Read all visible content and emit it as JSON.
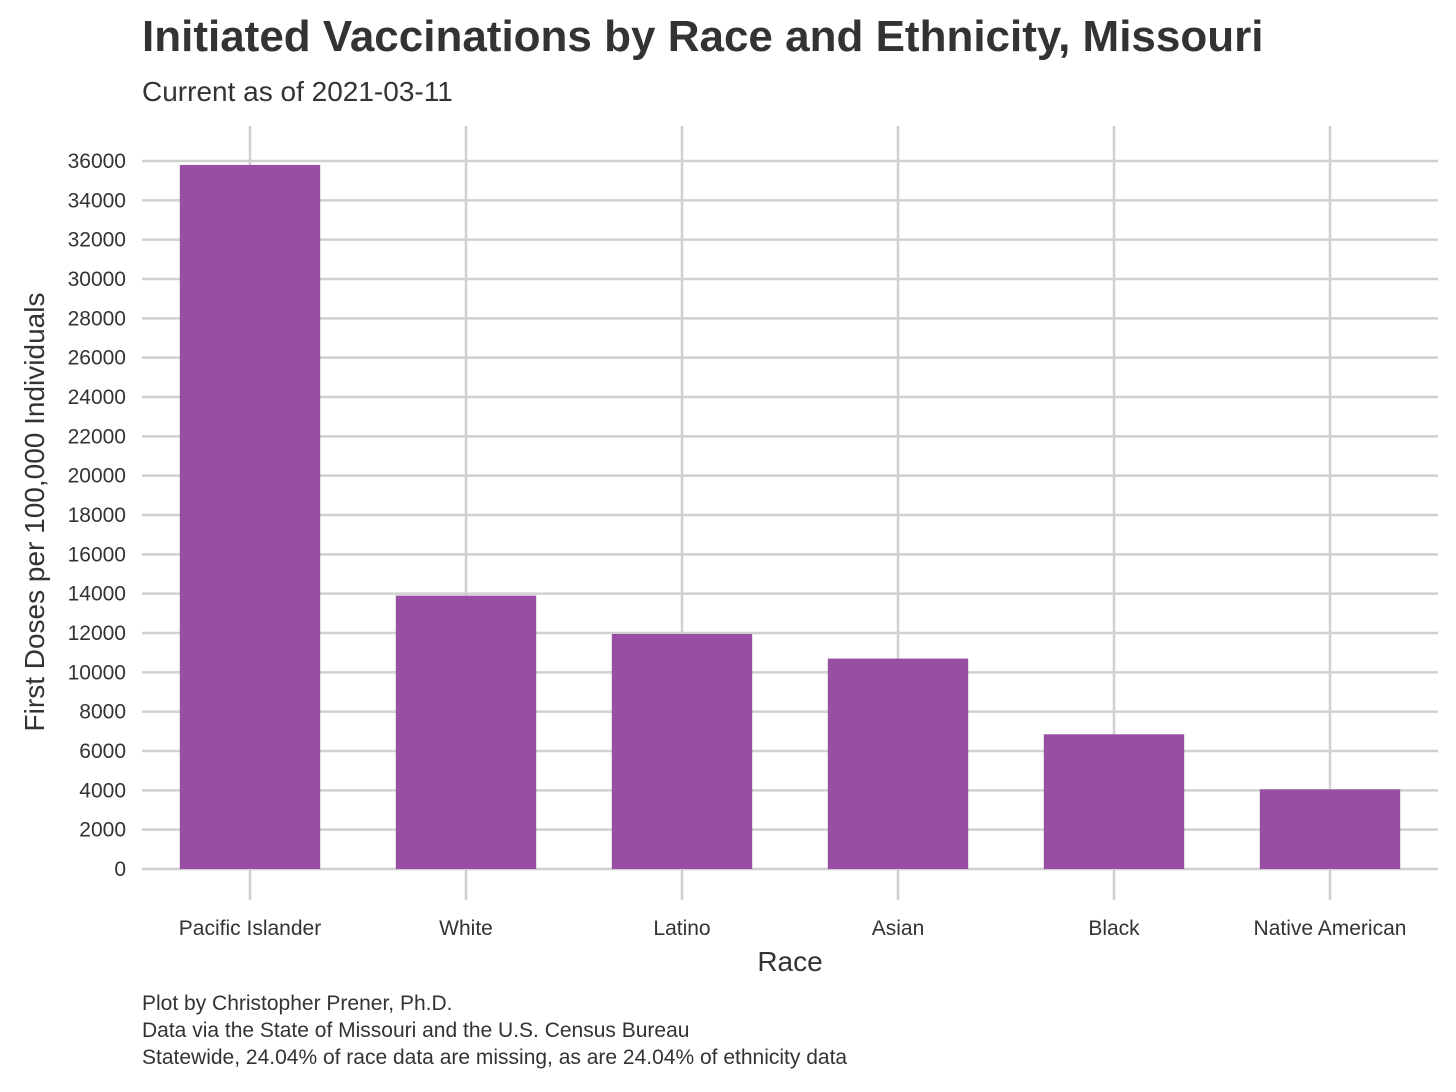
{
  "title": "Initiated Vaccinations by Race and Ethnicity, Missouri",
  "subtitle": "Current as of 2021-03-11",
  "caption": [
    "Plot by Christopher Prener, Ph.D.",
    "Data via the State of Missouri and the U.S. Census Bureau",
    "Statewide, 24.04% of race data are missing, as are 24.04% of ethnicity data"
  ],
  "colors": {
    "bar": "#984ea3",
    "grid": "#d0d0d0",
    "text": "#333333"
  },
  "chart_data": {
    "type": "bar",
    "title": "Initiated Vaccinations by Race and Ethnicity, Missouri",
    "subtitle": "Current as of 2021-03-11",
    "xlabel": "Race",
    "ylabel": "First Doses per 100,000 Individuals",
    "categories": [
      "Pacific Islander",
      "White",
      "Latino",
      "Asian",
      "Black",
      "Native American"
    ],
    "values": [
      35800,
      13900,
      11950,
      10700,
      6850,
      4050
    ],
    "ylim": [
      0,
      36000
    ],
    "yticks": [
      0,
      2000,
      4000,
      6000,
      8000,
      10000,
      12000,
      14000,
      16000,
      18000,
      20000,
      22000,
      24000,
      26000,
      28000,
      30000,
      32000,
      34000,
      36000
    ],
    "grid": true,
    "legend": "none"
  }
}
